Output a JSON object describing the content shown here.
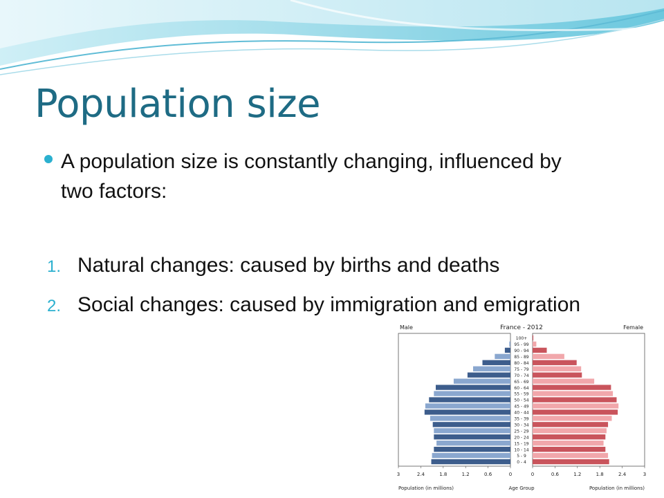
{
  "slide": {
    "title": "Population size",
    "bullet": "A population size is constantly changing, influenced by two factors:",
    "items": [
      {
        "num": "1.",
        "text": "Natural changes: caused by births and deaths"
      },
      {
        "num": "2.",
        "text": "Social changes: caused by immigration and emigration"
      }
    ]
  },
  "colors": {
    "title": "#1e6b84",
    "bullet": "#2bb0cf",
    "male_dark": "#3d5d8c",
    "male_light": "#8aa7cf",
    "female_dark": "#c9545c",
    "female_light": "#f1a7ab"
  },
  "chart_data": {
    "type": "bar",
    "orientation": "horizontal",
    "title": "France - 2012",
    "left_label": "Male",
    "right_label": "Female",
    "xlabel_left": "Population (in millions)",
    "xlabel_center": "Age Group",
    "xlabel_right": "Population (in millions)",
    "xlim": [
      0,
      3
    ],
    "xticks_left": [
      "3",
      "2.4",
      "1.8",
      "1.2",
      "0.6",
      "0"
    ],
    "xticks_right": [
      "0",
      "0.6",
      "1.2",
      "1.8",
      "2.4",
      "3"
    ],
    "categories": [
      "100+",
      "95 - 99",
      "90 - 94",
      "85 - 89",
      "80 - 84",
      "75 - 79",
      "70 - 74",
      "65 - 69",
      "60 - 64",
      "55 - 59",
      "50 - 54",
      "45 - 49",
      "40 - 44",
      "35 - 39",
      "30 - 34",
      "25 - 29",
      "20 - 24",
      "15 - 19",
      "10 - 14",
      "5 - 9",
      "0 - 4"
    ],
    "series": [
      {
        "name": "Male",
        "values": [
          0.0,
          0.03,
          0.15,
          0.42,
          0.75,
          1.0,
          1.15,
          1.52,
          2.0,
          2.05,
          2.18,
          2.28,
          2.3,
          2.15,
          2.08,
          2.05,
          2.05,
          1.98,
          2.05,
          2.1,
          2.12
        ]
      },
      {
        "name": "Female",
        "values": [
          0.02,
          0.1,
          0.38,
          0.85,
          1.18,
          1.3,
          1.32,
          1.65,
          2.1,
          2.15,
          2.25,
          2.3,
          2.28,
          2.12,
          2.02,
          1.98,
          1.95,
          1.9,
          1.95,
          2.02,
          2.05
        ]
      }
    ]
  }
}
